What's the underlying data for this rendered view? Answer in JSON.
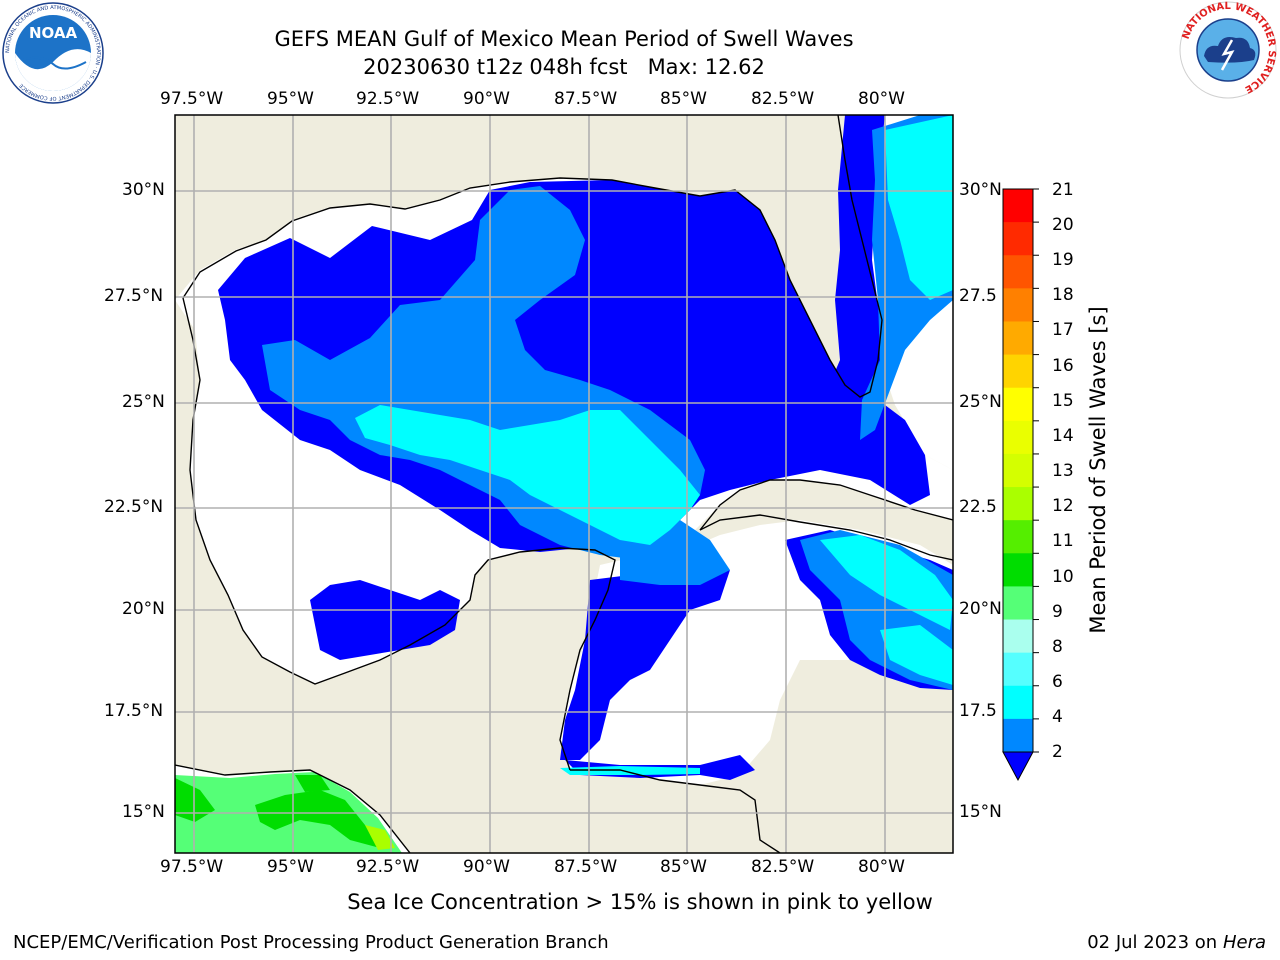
{
  "header": {
    "title_line1": "GEFS MEAN Gulf of Mexico Mean Period of Swell Waves",
    "title_line2": "20230630 t12z 048h fcst   Max: 12.62"
  },
  "logos": {
    "left_text": "NOAA",
    "left_ring_text": "NATIONAL OCEANIC AND ATMOSPHERIC ADMINISTRATION · U.S. DEPARTMENT OF COMMERCE",
    "right_ring_text": "NATIONAL WEATHER SERVICE"
  },
  "axes": {
    "lon_labels": [
      "97.5°W",
      "95°W",
      "92.5°W",
      "90°W",
      "87.5°W",
      "85°W",
      "82.5°W",
      "80°W"
    ],
    "lat_labels_left": [
      "30°N",
      "27.5°N",
      "25°N",
      "22.5°N",
      "20°N",
      "17.5°N",
      "15°N"
    ],
    "lat_labels_right": [
      "30°N",
      "27.5",
      "25°N",
      "22.5",
      "20°N",
      "17.5",
      "15°N"
    ]
  },
  "colorbar": {
    "title": "Mean Period of Swell Waves [s]",
    "ticks": [
      "21",
      "20",
      "19",
      "18",
      "17",
      "16",
      "15",
      "14",
      "13",
      "12",
      "11",
      "10",
      "9",
      "8",
      "6",
      "4",
      "2"
    ],
    "colors": [
      "#ff0000",
      "#ff2a00",
      "#ff5500",
      "#ff8000",
      "#ffaa00",
      "#ffd400",
      "#ffff00",
      "#eaff00",
      "#d4ff00",
      "#aaff00",
      "#55ee00",
      "#00dd00",
      "#55ff77",
      "#aaffee",
      "#55ffff",
      "#00ffff",
      "#0088ff"
    ],
    "extend_color": "#0000ff"
  },
  "colors": {
    "land": "#efedde",
    "water_white": "#ffffff",
    "swell_2_4": "#0000ff",
    "swell_4_6": "#0088ff",
    "swell_6_8": "#00ffff",
    "swell_8_9": "#55ffff",
    "swell_9_10": "#55ff77",
    "swell_10_11": "#00dd00",
    "grid": "#b0b0b0"
  },
  "annotation": "Sea Ice Concentration > 15% is shown in pink to yellow",
  "footer": {
    "left": "NCEP/EMC/Verification Post Processing Product Generation Branch",
    "date": "02 Jul 2023 on ",
    "host": "Hera"
  }
}
